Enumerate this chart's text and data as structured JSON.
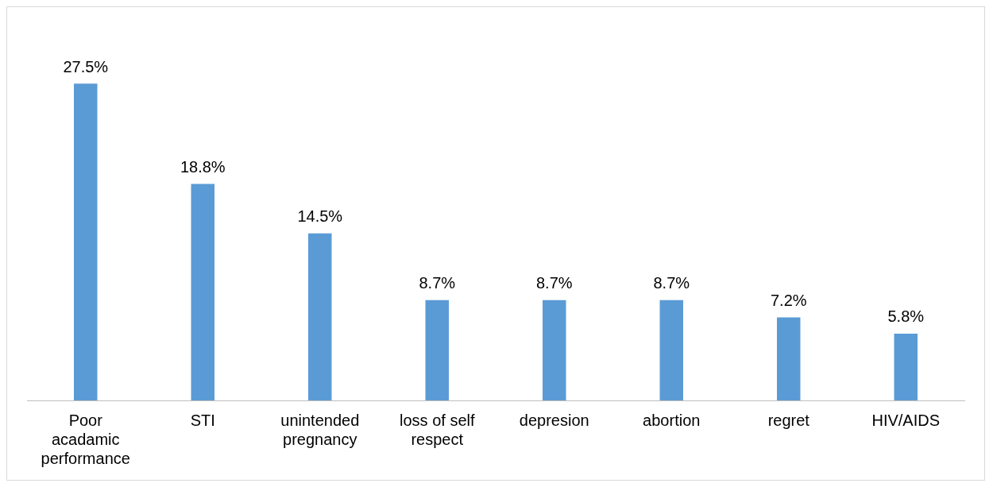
{
  "chart_data": {
    "type": "bar",
    "categories": [
      "Poor acadamic performance",
      "STI",
      "unintended pregnancy",
      "loss of self respect",
      "depresion",
      "abortion",
      "regret",
      "HIV/AIDS"
    ],
    "values": [
      27.5,
      18.8,
      14.5,
      8.7,
      8.7,
      8.7,
      7.2,
      5.8
    ],
    "value_labels": [
      "27.5%",
      "18.8%",
      "14.5%",
      "8.7%",
      "8.7%",
      "8.7%",
      "7.2%",
      "5.8%"
    ],
    "color": "#5b9bd5",
    "grid": false,
    "legend": false
  }
}
